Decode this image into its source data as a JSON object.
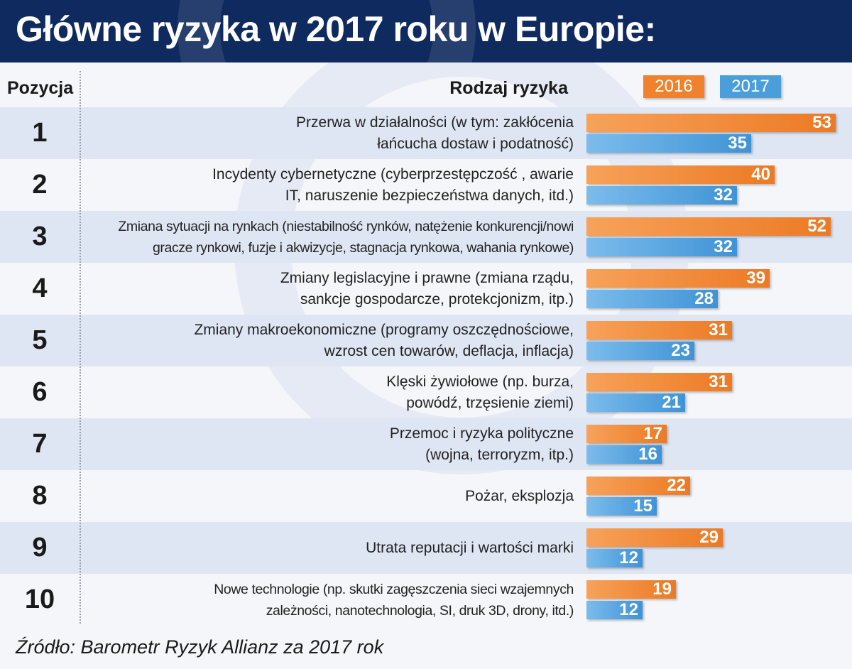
{
  "title": "Główne ryzyka w 2017 roku w Europie:",
  "columns": {
    "position": "Pozycja",
    "risk": "Rodzaj ryzyka"
  },
  "source": "Źródło: Barometr Ryzyk Allianz za 2017 rok",
  "colors": {
    "2016": "#f0822e",
    "2017": "#4a9fdb",
    "header": "#0e2a5e"
  },
  "chart_data": {
    "type": "bar",
    "orientation": "horizontal",
    "legend_position": "top-right",
    "categories": [
      "Przerwa w działalności (w tym: zakłócenia\nłańcucha dostaw i podatność)",
      "Incydenty cybernetyczne (cyberprzestępczość , awarie\nIT, naruszenie bezpieczeństwa danych, itd.)",
      "Zmiana sytuacji na rynkach (niestabilność rynków, natężenie konkurencji/nowi\ngracze rynkowi, fuzje i akwizycje, stagnacja rynkowa, wahania rynkowe)",
      "Zmiany legislacyjne i prawne (zmiana rządu,\nsankcje gospodarcze, protekcjonizm, itp.)",
      "Zmiany makroekonomiczne (programy oszczędnościowe,\nwzrost cen towarów, deflacja, inflacja)",
      "Klęski żywiołowe (np. burza,\npowódź, trzęsienie ziemi)",
      "Przemoc i ryzyka polityczne\n(wojna, terroryzm, itp.)",
      "Pożar, eksplozja",
      "Utrata reputacji i wartości marki",
      "Nowe technologie (np. skutki zagęszczenia sieci wzajemnych\nzależności, nanotechnologia, SI, druk 3D, drony, itd.)"
    ],
    "positions": [
      "1",
      "2",
      "3",
      "4",
      "5",
      "6",
      "7",
      "8",
      "9",
      "10"
    ],
    "series": [
      {
        "name": "2016",
        "values": [
          53,
          40,
          52,
          39,
          31,
          31,
          17,
          22,
          29,
          19
        ]
      },
      {
        "name": "2017",
        "values": [
          35,
          32,
          32,
          28,
          23,
          21,
          16,
          15,
          12,
          12
        ]
      }
    ],
    "xlim": [
      0,
      53
    ]
  }
}
